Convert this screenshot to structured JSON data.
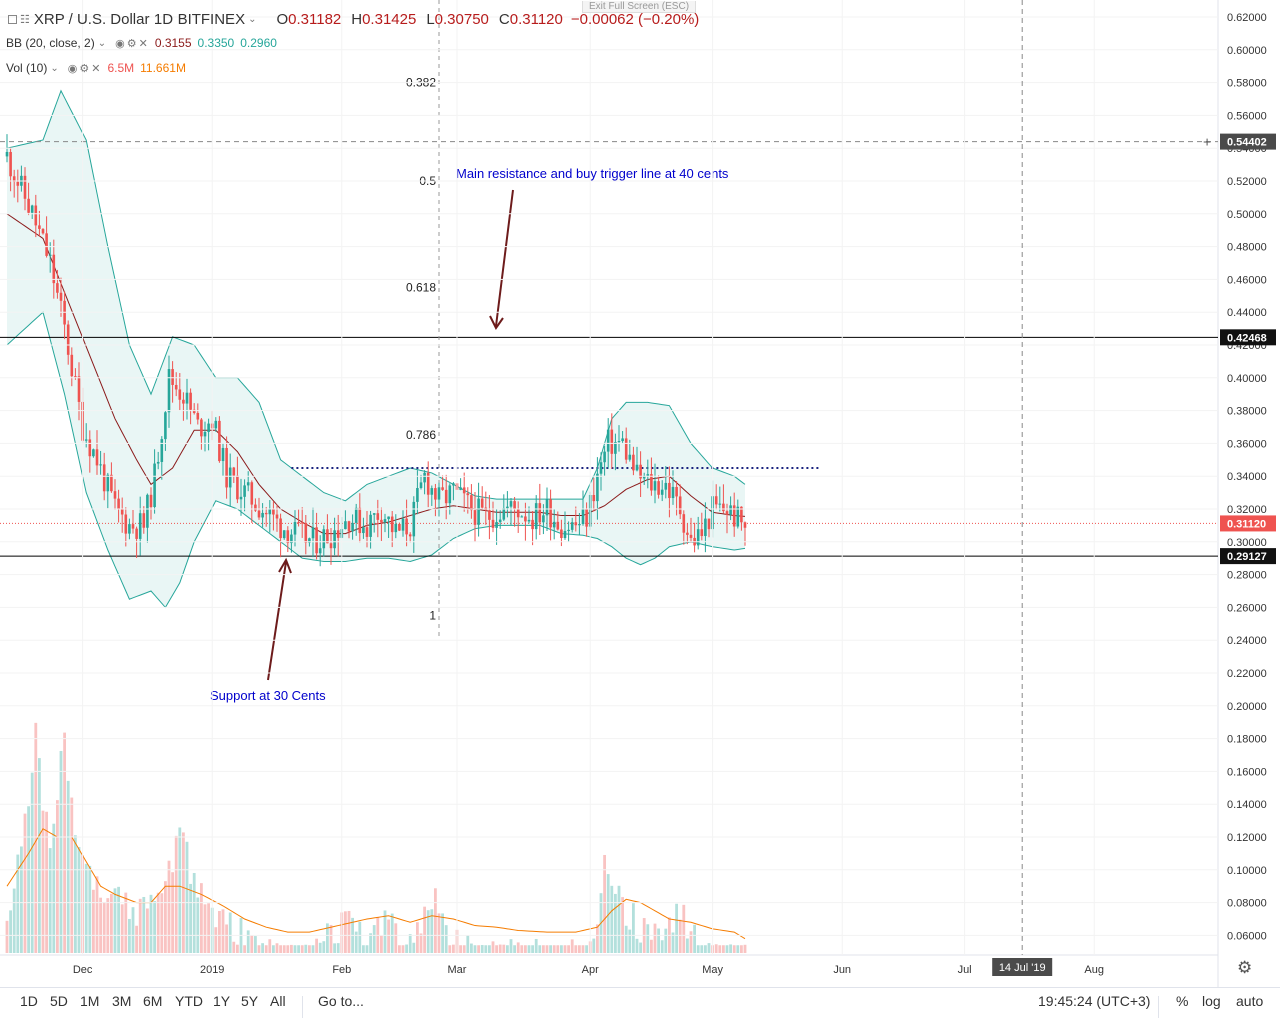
{
  "header": {
    "symbol": "XRP / U.S. Dollar",
    "interval": "1D",
    "exchange": "BITFINEX",
    "o_label": "O",
    "o_value": "0.31182",
    "h_label": "H",
    "h_value": "0.31425",
    "l_label": "L",
    "l_value": "0.30750",
    "c_label": "C",
    "c_value": "0.31120",
    "change": "−0.00062 (−0.20%)",
    "exit_fullscreen": "Exit Full Screen (ESC)"
  },
  "indicators": {
    "bb_label": "BB (20, close, 2)",
    "bb_basis": "0.3155",
    "bb_upper": "0.3350",
    "bb_lower": "0.2960",
    "vol_label": "Vol (10)",
    "vol_value": "6.5M",
    "vol_ma": "11.661M"
  },
  "colors": {
    "up": "#26a69a",
    "down": "#ef5350",
    "bb_fill": "#e0f2f1",
    "bb_line": "#26a69a",
    "basis": "#8b1a1a",
    "vol_ma": "#f57c00",
    "annotation": "#0000cc",
    "arrow": "#6d1b1b",
    "current_price": "#ef5350"
  },
  "annotations": {
    "resistance_note": "Main resistance and buy trigger line at 40 cents",
    "support_note": "Support at 30 Cents",
    "fib_382": "0.382",
    "fib_5": "0.5",
    "fib_618": "0.618",
    "fib_786": "0.786",
    "fib_1": "1"
  },
  "price_labels": {
    "crosshair": "0.54402",
    "resistance": "0.42468",
    "current": "0.31120",
    "support": "0.29127"
  },
  "time_axis": {
    "cursor_label": "14 Jul '19"
  },
  "bottom": {
    "ranges": [
      "1D",
      "5D",
      "1M",
      "3M",
      "6M",
      "YTD",
      "1Y",
      "5Y",
      "All"
    ],
    "goto": "Go to...",
    "clock": "19:45:24 (UTC+3)",
    "percent": "%",
    "log": "log",
    "auto": "auto"
  },
  "chart_data": {
    "type": "candlestick",
    "title": "XRP / U.S. Dollar, 1D, BITFINEX",
    "y_ticks": [
      "0.62000",
      "0.60000",
      "0.58000",
      "0.56000",
      "0.54000",
      "0.52000",
      "0.50000",
      "0.48000",
      "0.46000",
      "0.44000",
      "0.42000",
      "0.40000",
      "0.38000",
      "0.36000",
      "0.34000",
      "0.32000",
      "0.30000",
      "0.28000",
      "0.26000",
      "0.24000",
      "0.22000",
      "0.20000",
      "0.18000",
      "0.16000",
      "0.14000",
      "0.12000",
      "0.10000",
      "0.08000",
      "0.06000"
    ],
    "x_ticks": [
      "Dec",
      "2019",
      "Feb",
      "Mar",
      "Apr",
      "May",
      "Jun",
      "Jul",
      "Aug"
    ],
    "price_range": [
      0.053,
      0.625
    ],
    "horizontal_levels": {
      "resistance": 0.42468,
      "support": 0.29127,
      "current": 0.3112,
      "crosshair": 0.54402,
      "dotted_resistance": 0.345
    },
    "fib_levels": {
      "0.382": 0.58,
      "0.5": 0.52,
      "0.618": 0.455,
      "0.786": 0.365,
      "1": 0.255
    },
    "series": [
      {
        "name": "XRP/USD",
        "kind": "ohlc",
        "anchors": [
          [
            0,
            0.535
          ],
          [
            7,
            0.5
          ],
          [
            12,
            0.47
          ],
          [
            16,
            0.43
          ],
          [
            21,
            0.37
          ],
          [
            25,
            0.35
          ],
          [
            30,
            0.32
          ],
          [
            34,
            0.31
          ],
          [
            38,
            0.31
          ],
          [
            41,
            0.34
          ],
          [
            45,
            0.4
          ],
          [
            49,
            0.39
          ],
          [
            53,
            0.37
          ],
          [
            57,
            0.375
          ],
          [
            61,
            0.34
          ],
          [
            66,
            0.33
          ],
          [
            71,
            0.32
          ],
          [
            76,
            0.31
          ],
          [
            80,
            0.305
          ],
          [
            85,
            0.3
          ],
          [
            90,
            0.305
          ],
          [
            95,
            0.315
          ],
          [
            100,
            0.31
          ],
          [
            104,
            0.32
          ],
          [
            108,
            0.305
          ],
          [
            112,
            0.31
          ],
          [
            116,
            0.34
          ],
          [
            120,
            0.325
          ],
          [
            124,
            0.33
          ],
          [
            129,
            0.32
          ],
          [
            133,
            0.315
          ],
          [
            138,
            0.32
          ],
          [
            142,
            0.32
          ],
          [
            146,
            0.315
          ],
          [
            150,
            0.32
          ],
          [
            154,
            0.31
          ],
          [
            158,
            0.31
          ],
          [
            161,
            0.315
          ],
          [
            164,
            0.34
          ],
          [
            167,
            0.36
          ],
          [
            171,
            0.36
          ],
          [
            175,
            0.34
          ],
          [
            179,
            0.335
          ],
          [
            183,
            0.335
          ],
          [
            187,
            0.32
          ],
          [
            190,
            0.3
          ],
          [
            193,
            0.305
          ],
          [
            196,
            0.32
          ],
          [
            200,
            0.32
          ],
          [
            204,
            0.3112
          ]
        ]
      },
      {
        "name": "BB basis (20, close, 2)",
        "kind": "line",
        "anchors": [
          [
            0,
            0.5
          ],
          [
            10,
            0.485
          ],
          [
            20,
            0.43
          ],
          [
            30,
            0.375
          ],
          [
            36,
            0.35
          ],
          [
            40,
            0.335
          ],
          [
            46,
            0.345
          ],
          [
            52,
            0.368
          ],
          [
            58,
            0.368
          ],
          [
            64,
            0.355
          ],
          [
            70,
            0.335
          ],
          [
            76,
            0.32
          ],
          [
            82,
            0.312
          ],
          [
            88,
            0.305
          ],
          [
            94,
            0.305
          ],
          [
            100,
            0.31
          ],
          [
            106,
            0.312
          ],
          [
            112,
            0.316
          ],
          [
            118,
            0.32
          ],
          [
            124,
            0.322
          ],
          [
            130,
            0.32
          ],
          [
            136,
            0.318
          ],
          [
            142,
            0.318
          ],
          [
            148,
            0.318
          ],
          [
            154,
            0.316
          ],
          [
            160,
            0.316
          ],
          [
            166,
            0.322
          ],
          [
            172,
            0.332
          ],
          [
            178,
            0.338
          ],
          [
            184,
            0.34
          ],
          [
            190,
            0.328
          ],
          [
            196,
            0.318
          ],
          [
            202,
            0.316
          ],
          [
            205,
            0.3155
          ]
        ]
      },
      {
        "name": "BB upper",
        "kind": "line",
        "anchors": [
          [
            0,
            0.54
          ],
          [
            10,
            0.545
          ],
          [
            15,
            0.575
          ],
          [
            22,
            0.545
          ],
          [
            28,
            0.48
          ],
          [
            34,
            0.42
          ],
          [
            40,
            0.39
          ],
          [
            46,
            0.425
          ],
          [
            52,
            0.42
          ],
          [
            58,
            0.4
          ],
          [
            64,
            0.4
          ],
          [
            70,
            0.385
          ],
          [
            76,
            0.35
          ],
          [
            82,
            0.34
          ],
          [
            88,
            0.33
          ],
          [
            94,
            0.325
          ],
          [
            100,
            0.335
          ],
          [
            106,
            0.34
          ],
          [
            112,
            0.345
          ],
          [
            118,
            0.342
          ],
          [
            124,
            0.335
          ],
          [
            130,
            0.328
          ],
          [
            136,
            0.326
          ],
          [
            142,
            0.326
          ],
          [
            148,
            0.326
          ],
          [
            154,
            0.326
          ],
          [
            160,
            0.326
          ],
          [
            164,
            0.345
          ],
          [
            168,
            0.375
          ],
          [
            172,
            0.385
          ],
          [
            178,
            0.385
          ],
          [
            184,
            0.383
          ],
          [
            190,
            0.36
          ],
          [
            196,
            0.345
          ],
          [
            202,
            0.34
          ],
          [
            205,
            0.335
          ]
        ]
      },
      {
        "name": "BB lower",
        "kind": "line",
        "anchors": [
          [
            0,
            0.42
          ],
          [
            10,
            0.44
          ],
          [
            16,
            0.39
          ],
          [
            22,
            0.33
          ],
          [
            28,
            0.295
          ],
          [
            34,
            0.265
          ],
          [
            40,
            0.27
          ],
          [
            44,
            0.26
          ],
          [
            48,
            0.275
          ],
          [
            52,
            0.3
          ],
          [
            58,
            0.325
          ],
          [
            64,
            0.32
          ],
          [
            70,
            0.31
          ],
          [
            76,
            0.3
          ],
          [
            82,
            0.29
          ],
          [
            88,
            0.288
          ],
          [
            94,
            0.288
          ],
          [
            100,
            0.29
          ],
          [
            106,
            0.29
          ],
          [
            112,
            0.288
          ],
          [
            118,
            0.292
          ],
          [
            124,
            0.302
          ],
          [
            130,
            0.308
          ],
          [
            136,
            0.31
          ],
          [
            142,
            0.31
          ],
          [
            148,
            0.31
          ],
          [
            154,
            0.305
          ],
          [
            160,
            0.304
          ],
          [
            164,
            0.302
          ],
          [
            168,
            0.297
          ],
          [
            172,
            0.29
          ],
          [
            176,
            0.286
          ],
          [
            180,
            0.29
          ],
          [
            184,
            0.297
          ],
          [
            190,
            0.3
          ],
          [
            196,
            0.297
          ],
          [
            202,
            0.295
          ],
          [
            205,
            0.296
          ]
        ]
      },
      {
        "name": "Volume",
        "kind": "bars",
        "unit": "price-axis scale",
        "anchors": [
          [
            0,
            0.085
          ],
          [
            6,
            0.145
          ],
          [
            8,
            0.19
          ],
          [
            12,
            0.12
          ],
          [
            16,
            0.19
          ],
          [
            20,
            0.12
          ],
          [
            24,
            0.1
          ],
          [
            28,
            0.095
          ],
          [
            32,
            0.09
          ],
          [
            36,
            0.085
          ],
          [
            40,
            0.1
          ],
          [
            44,
            0.095
          ],
          [
            48,
            0.14
          ],
          [
            52,
            0.1
          ],
          [
            56,
            0.085
          ],
          [
            60,
            0.08
          ],
          [
            66,
            0.07
          ],
          [
            72,
            0.065
          ],
          [
            78,
            0.06
          ],
          [
            84,
            0.062
          ],
          [
            90,
            0.07
          ],
          [
            96,
            0.08
          ],
          [
            100,
            0.065
          ],
          [
            106,
            0.085
          ],
          [
            110,
            0.06
          ],
          [
            114,
            0.07
          ],
          [
            118,
            0.095
          ],
          [
            122,
            0.07
          ],
          [
            126,
            0.065
          ],
          [
            132,
            0.062
          ],
          [
            140,
            0.06
          ],
          [
            150,
            0.06
          ],
          [
            158,
            0.058
          ],
          [
            164,
            0.07
          ],
          [
            166,
            0.12
          ],
          [
            168,
            0.11
          ],
          [
            172,
            0.085
          ],
          [
            176,
            0.075
          ],
          [
            182,
            0.07
          ],
          [
            186,
            0.085
          ],
          [
            190,
            0.075
          ],
          [
            194,
            0.062
          ],
          [
            198,
            0.06
          ],
          [
            205,
            0.055
          ]
        ]
      },
      {
        "name": "Volume MA (10)",
        "kind": "line",
        "anchors": [
          [
            0,
            0.09
          ],
          [
            6,
            0.11
          ],
          [
            10,
            0.125
          ],
          [
            14,
            0.12
          ],
          [
            18,
            0.12
          ],
          [
            22,
            0.105
          ],
          [
            26,
            0.09
          ],
          [
            30,
            0.085
          ],
          [
            36,
            0.08
          ],
          [
            40,
            0.08
          ],
          [
            44,
            0.09
          ],
          [
            48,
            0.09
          ],
          [
            54,
            0.085
          ],
          [
            60,
            0.078
          ],
          [
            66,
            0.07
          ],
          [
            72,
            0.065
          ],
          [
            78,
            0.062
          ],
          [
            84,
            0.062
          ],
          [
            90,
            0.065
          ],
          [
            96,
            0.068
          ],
          [
            100,
            0.07
          ],
          [
            106,
            0.072
          ],
          [
            112,
            0.068
          ],
          [
            118,
            0.072
          ],
          [
            124,
            0.07
          ],
          [
            130,
            0.066
          ],
          [
            136,
            0.065
          ],
          [
            142,
            0.063
          ],
          [
            150,
            0.062
          ],
          [
            158,
            0.062
          ],
          [
            164,
            0.065
          ],
          [
            168,
            0.075
          ],
          [
            172,
            0.082
          ],
          [
            176,
            0.08
          ],
          [
            180,
            0.075
          ],
          [
            184,
            0.07
          ],
          [
            190,
            0.068
          ],
          [
            196,
            0.064
          ],
          [
            202,
            0.062
          ],
          [
            205,
            0.058
          ]
        ]
      }
    ],
    "grid": true,
    "legend": "top-left"
  }
}
